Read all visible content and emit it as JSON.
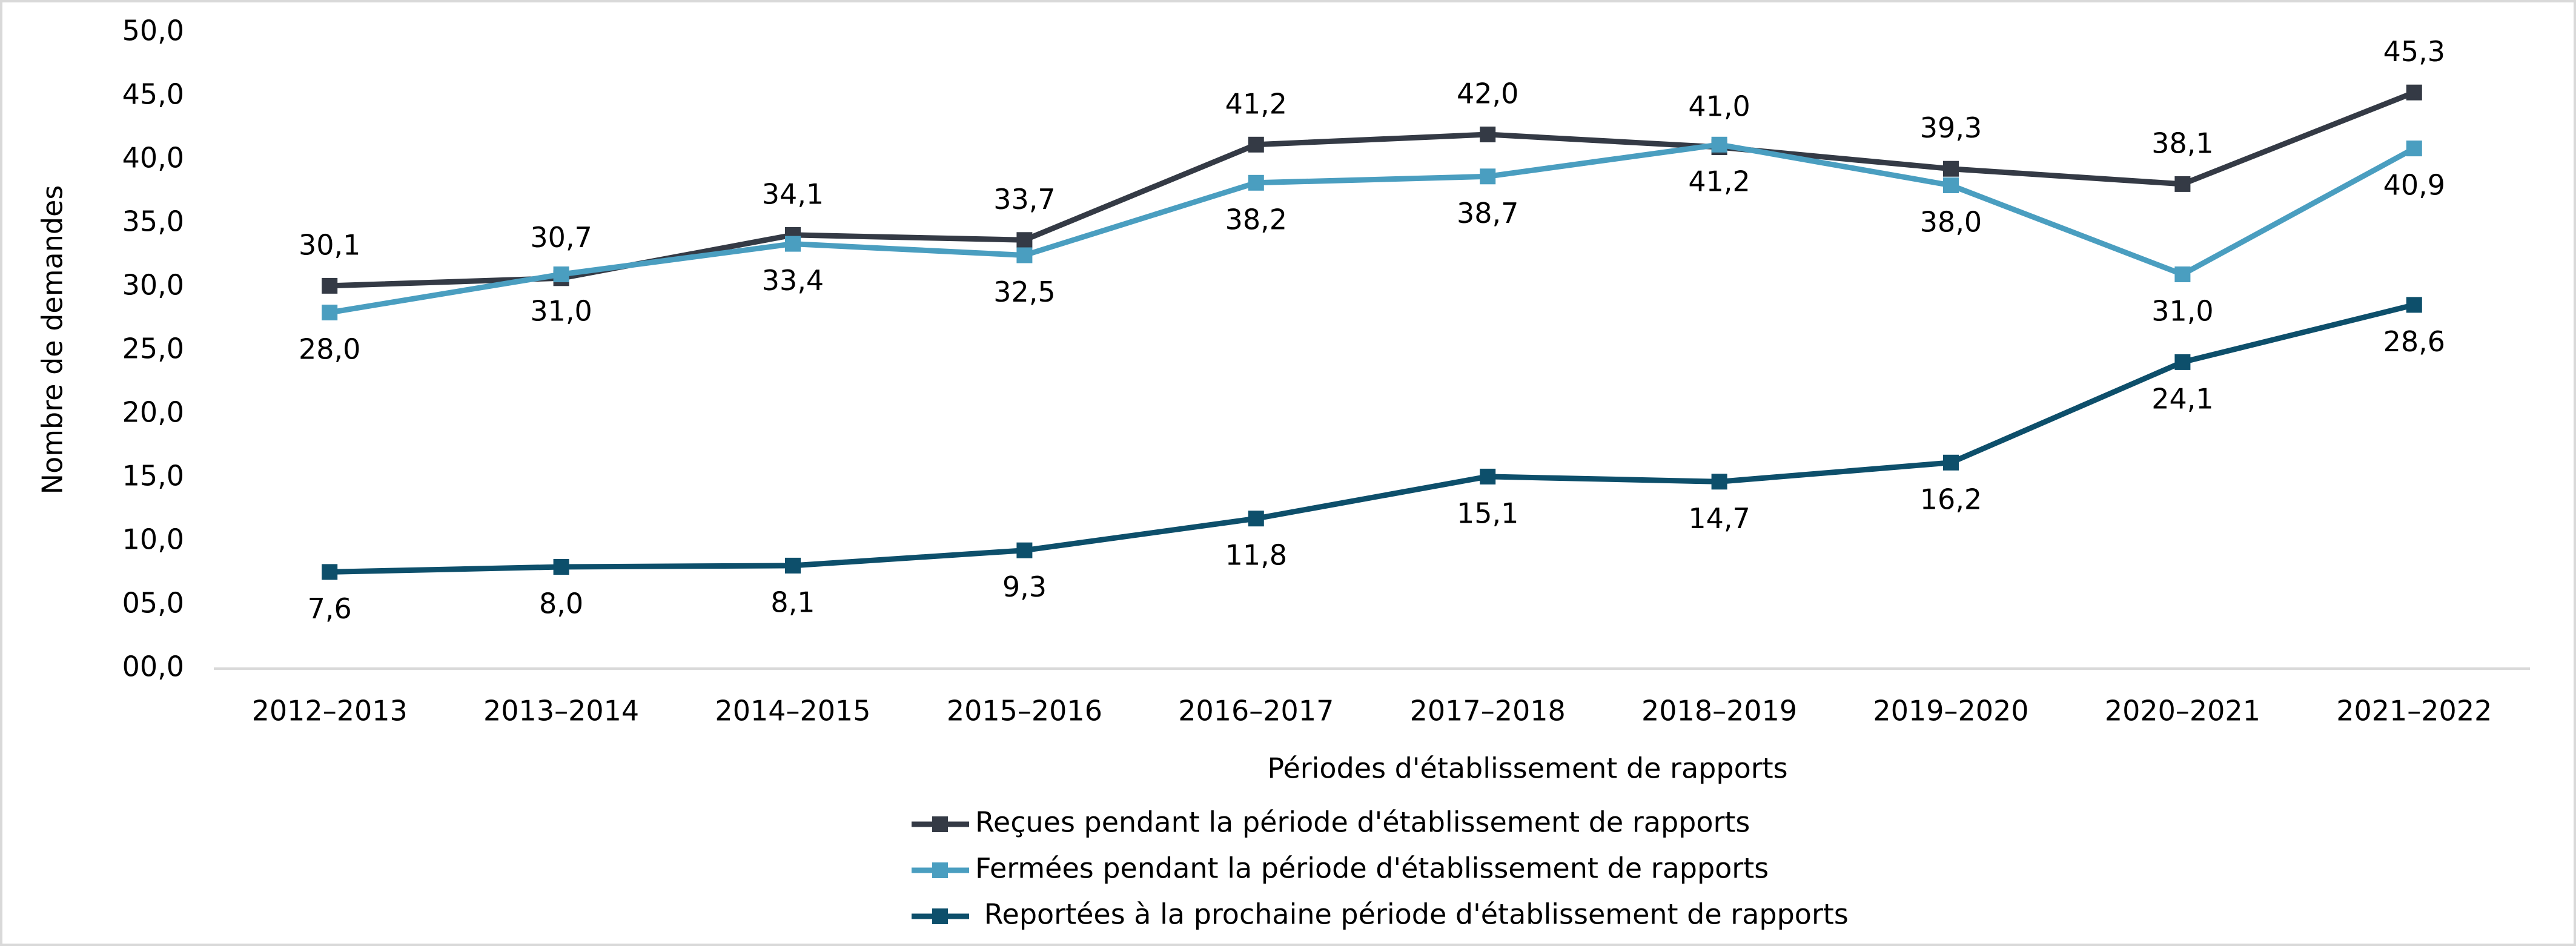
{
  "chart_data": {
    "type": "line",
    "x_label": "Périodes d'établissement de rapports",
    "y_label": "Nombre de demandes",
    "categories": [
      "2012–2013",
      "2013–2014",
      "2014–2015",
      "2015–2016",
      "2016–2017",
      "2017–2018",
      "2018–2019",
      "2019–2020",
      "2020–2021",
      "2021–2022"
    ],
    "series": [
      {
        "name": "Reçues pendant la période d'établissement de rapports",
        "color": "#343a45",
        "label_position": "above",
        "values": [
          30.1,
          30.7,
          34.1,
          33.7,
          41.2,
          42.0,
          41.0,
          39.3,
          38.1,
          45.3
        ],
        "value_labels": [
          "30,1",
          "30,7",
          "34,1",
          "33,7",
          "41,2",
          "42,0",
          "41,0",
          "39,3",
          "38,1",
          "45,3"
        ]
      },
      {
        "name": "Fermées pendant la période d'établissement de rapports",
        "color": "#4a9ec0",
        "label_position": "below",
        "values": [
          28.0,
          31.0,
          33.4,
          32.5,
          38.2,
          38.7,
          41.2,
          38.0,
          31.0,
          40.9
        ],
        "value_labels": [
          "28,0",
          "31,0",
          "33,4",
          "32,5",
          "38,2",
          "38,7",
          "41,2",
          "38,0",
          "31,0",
          "40,9"
        ]
      },
      {
        "name": " Reportées à la prochaine période d'établissement de rapports",
        "color": "#0d4f6b",
        "label_position": "below",
        "values": [
          7.6,
          8.0,
          8.1,
          9.3,
          11.8,
          15.1,
          14.7,
          16.2,
          24.1,
          28.6
        ],
        "value_labels": [
          "7,6",
          "8,0",
          "8,1",
          "9,3",
          "11,8",
          "15,1",
          "14,7",
          "16,2",
          "24,1",
          "28,6"
        ]
      }
    ],
    "ylim": [
      0,
      50
    ],
    "yticks": [
      {
        "value": 0,
        "label": "00,0"
      },
      {
        "value": 5,
        "label": "05,0"
      },
      {
        "value": 10,
        "label": "10,0"
      },
      {
        "value": 15,
        "label": "15,0"
      },
      {
        "value": 20,
        "label": "20,0"
      },
      {
        "value": 25,
        "label": "25,0"
      },
      {
        "value": 30,
        "label": "30,0"
      },
      {
        "value": 35,
        "label": "35,0"
      },
      {
        "value": 40,
        "label": "40,0"
      },
      {
        "value": 45,
        "label": "45,0"
      },
      {
        "value": 50,
        "label": "50,0"
      }
    ],
    "grid": false,
    "legend": "bottom"
  }
}
